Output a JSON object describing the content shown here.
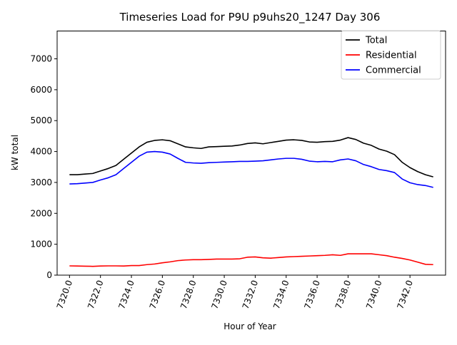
{
  "chart_data": {
    "type": "line",
    "title": "Timeseries Load for P9U p9uhs20_1247  Day 306",
    "xlabel": "Hour of Year",
    "ylabel": "kW total",
    "xlim": [
      7319.2,
      7344.3
    ],
    "ylim": [
      0,
      7900
    ],
    "x_ticks": [
      7320,
      7322,
      7324,
      7326,
      7328,
      7330,
      7332,
      7334,
      7336,
      7338,
      7340,
      7342
    ],
    "x_tick_labels": [
      "7320.0",
      "7322.0",
      "7324.0",
      "7326.0",
      "7328.0",
      "7330.0",
      "7332.0",
      "7334.0",
      "7336.0",
      "7338.0",
      "7340.0",
      "7342.0"
    ],
    "y_ticks": [
      0,
      1000,
      2000,
      3000,
      4000,
      5000,
      6000,
      7000
    ],
    "y_tick_labels": [
      "0",
      "1000",
      "2000",
      "3000",
      "4000",
      "5000",
      "6000",
      "7000"
    ],
    "grid": false,
    "legend_position": "top-right",
    "x": [
      7320.0,
      7320.5,
      7321.0,
      7321.5,
      7322.0,
      7322.5,
      7323.0,
      7323.5,
      7324.0,
      7324.5,
      7325.0,
      7325.5,
      7326.0,
      7326.5,
      7327.0,
      7327.5,
      7328.0,
      7328.5,
      7329.0,
      7329.5,
      7330.0,
      7330.5,
      7331.0,
      7331.5,
      7332.0,
      7332.5,
      7333.0,
      7333.5,
      7334.0,
      7334.5,
      7335.0,
      7335.5,
      7336.0,
      7336.5,
      7337.0,
      7337.5,
      7338.0,
      7338.5,
      7339.0,
      7339.5,
      7340.0,
      7340.5,
      7341.0,
      7341.5,
      7342.0,
      7342.5,
      7343.0,
      7343.5
    ],
    "series": [
      {
        "name": "Total",
        "color": "#000000",
        "values": [
          3250,
          3250,
          3270,
          3290,
          3370,
          3450,
          3550,
          3750,
          3950,
          4150,
          4300,
          4360,
          4380,
          4350,
          4250,
          4150,
          4120,
          4100,
          4150,
          4160,
          4170,
          4180,
          4210,
          4260,
          4280,
          4250,
          4290,
          4330,
          4370,
          4380,
          4360,
          4310,
          4300,
          4320,
          4330,
          4370,
          4450,
          4390,
          4270,
          4200,
          4080,
          4010,
          3900,
          3650,
          3480,
          3350,
          3250,
          3180
        ]
      },
      {
        "name": "Residential",
        "color": "#ff0000",
        "values": [
          300,
          295,
          290,
          285,
          295,
          300,
          300,
          295,
          310,
          310,
          340,
          360,
          400,
          430,
          470,
          490,
          500,
          500,
          510,
          520,
          520,
          520,
          530,
          580,
          590,
          560,
          550,
          570,
          590,
          600,
          610,
          620,
          630,
          640,
          660,
          640,
          690,
          690,
          690,
          690,
          660,
          630,
          580,
          540,
          490,
          420,
          350,
          340
        ]
      },
      {
        "name": "Commercial",
        "color": "#0000ff",
        "values": [
          2950,
          2960,
          2980,
          3000,
          3080,
          3150,
          3250,
          3450,
          3650,
          3850,
          3980,
          4000,
          3980,
          3920,
          3780,
          3650,
          3630,
          3620,
          3640,
          3650,
          3660,
          3670,
          3680,
          3680,
          3690,
          3700,
          3730,
          3760,
          3780,
          3780,
          3750,
          3690,
          3670,
          3680,
          3670,
          3730,
          3760,
          3700,
          3580,
          3510,
          3420,
          3380,
          3320,
          3110,
          2990,
          2930,
          2900,
          2840
        ]
      }
    ]
  }
}
